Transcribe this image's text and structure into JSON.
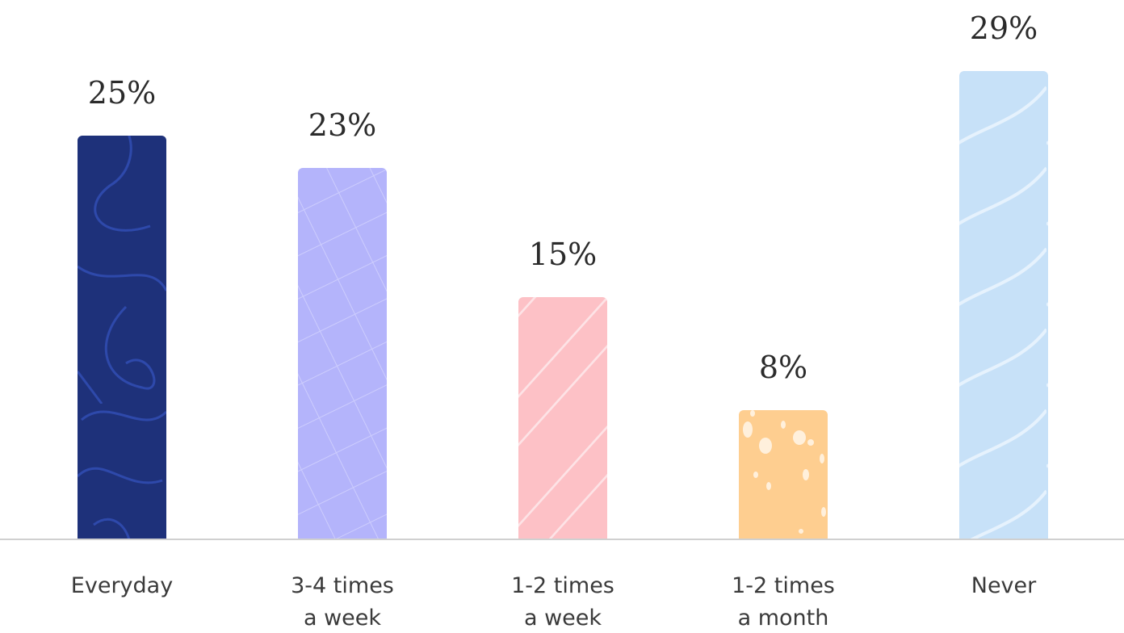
{
  "chart_data": {
    "type": "bar",
    "categories": [
      [
        "Everyday"
      ],
      [
        "3-4 times",
        "a week"
      ],
      [
        "1-2 times",
        "a week"
      ],
      [
        "1-2 times",
        "a month"
      ],
      [
        "Never"
      ]
    ],
    "values": [
      25,
      23,
      15,
      8,
      29
    ],
    "value_labels": [
      "25%",
      "23%",
      "15%",
      "8%",
      "29%"
    ],
    "colors": [
      "#1e317a",
      "#b4b4fb",
      "#fdc1c6",
      "#fece90",
      "#c7e1f8"
    ],
    "pattern_colors": [
      "#2f4bb0",
      "#cdcdfd",
      "#fde3e6",
      "#fff0dc",
      "#e6f2fd"
    ],
    "pattern_names": [
      "squiggle",
      "grid",
      "diagonal-stripes",
      "speckles",
      "waves"
    ],
    "title": "",
    "xlabel": "",
    "ylabel": "",
    "ylim": [
      0,
      29
    ],
    "grid": false,
    "legend": false,
    "baseline_color": "#d0d0d0"
  }
}
